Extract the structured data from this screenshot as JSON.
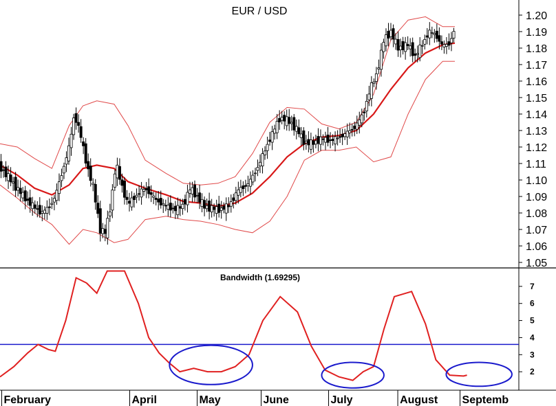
{
  "colors": {
    "band": "#e04848",
    "middle": "#d81818",
    "candle": "#000000",
    "bandwidth_line": "#e02020",
    "threshold": "#1a1acc",
    "squeeze_ellipse": "#1a1acc",
    "grid": "#000000",
    "background": "#ffffff"
  },
  "chart_data": [
    {
      "type": "candlestick",
      "title": "EUR / USD",
      "ylim": [
        1.05,
        1.205
      ],
      "yticks": [
        1.05,
        1.06,
        1.07,
        1.08,
        1.09,
        1.1,
        1.11,
        1.12,
        1.13,
        1.14,
        1.15,
        1.16,
        1.17,
        1.18,
        1.19,
        1.2
      ],
      "ytick_labels": [
        "1.05",
        "1.06",
        "1.07",
        "1.08",
        "1.09",
        "1.10",
        "1.11",
        "1.12",
        "1.13",
        "1.14",
        "1.15",
        "1.16",
        "1.17",
        "1.18",
        "1.19",
        "1.20"
      ],
      "close_path": [
        [
          0,
          1.108
        ],
        [
          6,
          1.1
        ],
        [
          12,
          1.092
        ],
        [
          18,
          1.085
        ],
        [
          24,
          1.08
        ],
        [
          28,
          1.083
        ],
        [
          32,
          1.09
        ],
        [
          36,
          1.105
        ],
        [
          40,
          1.12
        ],
        [
          43,
          1.14
        ],
        [
          46,
          1.13
        ],
        [
          50,
          1.11
        ],
        [
          54,
          1.095
        ],
        [
          58,
          1.07
        ],
        [
          61,
          1.068
        ],
        [
          64,
          1.085
        ],
        [
          67,
          1.11
        ],
        [
          70,
          1.098
        ],
        [
          74,
          1.085
        ],
        [
          78,
          1.09
        ],
        [
          84,
          1.095
        ],
        [
          90,
          1.088
        ],
        [
          96,
          1.084
        ],
        [
          102,
          1.082
        ],
        [
          106,
          1.085
        ],
        [
          110,
          1.095
        ],
        [
          114,
          1.09
        ],
        [
          118,
          1.084
        ],
        [
          122,
          1.083
        ],
        [
          126,
          1.082
        ],
        [
          132,
          1.084
        ],
        [
          138,
          1.094
        ],
        [
          144,
          1.098
        ],
        [
          150,
          1.11
        ],
        [
          156,
          1.125
        ],
        [
          162,
          1.138
        ],
        [
          168,
          1.135
        ],
        [
          172,
          1.13
        ],
        [
          176,
          1.123
        ],
        [
          180,
          1.122
        ],
        [
          186,
          1.125
        ],
        [
          192,
          1.124
        ],
        [
          196,
          1.126
        ],
        [
          200,
          1.128
        ],
        [
          206,
          1.133
        ],
        [
          210,
          1.14
        ],
        [
          214,
          1.155
        ],
        [
          218,
          1.165
        ],
        [
          222,
          1.185
        ],
        [
          226,
          1.19
        ],
        [
          230,
          1.18
        ],
        [
          236,
          1.182
        ],
        [
          240,
          1.175
        ],
        [
          244,
          1.182
        ],
        [
          248,
          1.19
        ],
        [
          252,
          1.188
        ],
        [
          256,
          1.181
        ],
        [
          260,
          1.183
        ],
        [
          263,
          1.192
        ]
      ],
      "middle_band": [
        [
          0,
          1.109
        ],
        [
          10,
          1.103
        ],
        [
          20,
          1.095
        ],
        [
          30,
          1.091
        ],
        [
          40,
          1.097
        ],
        [
          48,
          1.107
        ],
        [
          56,
          1.109
        ],
        [
          66,
          1.107
        ],
        [
          74,
          1.099
        ],
        [
          84,
          1.095
        ],
        [
          96,
          1.091
        ],
        [
          106,
          1.087
        ],
        [
          116,
          1.086
        ],
        [
          126,
          1.084
        ],
        [
          136,
          1.086
        ],
        [
          146,
          1.092
        ],
        [
          156,
          1.102
        ],
        [
          166,
          1.114
        ],
        [
          176,
          1.122
        ],
        [
          186,
          1.126
        ],
        [
          196,
          1.127
        ],
        [
          206,
          1.13
        ],
        [
          216,
          1.14
        ],
        [
          226,
          1.155
        ],
        [
          236,
          1.168
        ],
        [
          246,
          1.177
        ],
        [
          256,
          1.182
        ],
        [
          263,
          1.183
        ]
      ],
      "upper_band": [
        [
          0,
          1.122
        ],
        [
          10,
          1.12
        ],
        [
          20,
          1.113
        ],
        [
          30,
          1.107
        ],
        [
          40,
          1.133
        ],
        [
          48,
          1.145
        ],
        [
          56,
          1.148
        ],
        [
          66,
          1.146
        ],
        [
          74,
          1.133
        ],
        [
          84,
          1.112
        ],
        [
          96,
          1.104
        ],
        [
          106,
          1.098
        ],
        [
          116,
          1.097
        ],
        [
          126,
          1.098
        ],
        [
          136,
          1.102
        ],
        [
          146,
          1.116
        ],
        [
          156,
          1.135
        ],
        [
          166,
          1.144
        ],
        [
          176,
          1.143
        ],
        [
          186,
          1.134
        ],
        [
          196,
          1.131
        ],
        [
          206,
          1.135
        ],
        [
          216,
          1.152
        ],
        [
          226,
          1.185
        ],
        [
          236,
          1.197
        ],
        [
          246,
          1.199
        ],
        [
          256,
          1.193
        ],
        [
          263,
          1.193
        ]
      ],
      "lower_band": [
        [
          0,
          1.097
        ],
        [
          10,
          1.089
        ],
        [
          20,
          1.08
        ],
        [
          30,
          1.073
        ],
        [
          40,
          1.061
        ],
        [
          48,
          1.07
        ],
        [
          56,
          1.068
        ],
        [
          66,
          1.062
        ],
        [
          74,
          1.064
        ],
        [
          84,
          1.076
        ],
        [
          96,
          1.078
        ],
        [
          106,
          1.076
        ],
        [
          116,
          1.075
        ],
        [
          126,
          1.073
        ],
        [
          136,
          1.07
        ],
        [
          146,
          1.068
        ],
        [
          156,
          1.075
        ],
        [
          166,
          1.09
        ],
        [
          176,
          1.112
        ],
        [
          186,
          1.118
        ],
        [
          196,
          1.118
        ],
        [
          206,
          1.12
        ],
        [
          216,
          1.111
        ],
        [
          226,
          1.114
        ],
        [
          236,
          1.14
        ],
        [
          246,
          1.161
        ],
        [
          256,
          1.172
        ],
        [
          263,
          1.172
        ]
      ]
    },
    {
      "type": "line",
      "title": "Bandwidth (1.69295)",
      "ylim": [
        1,
        8
      ],
      "yticks": [
        2,
        3,
        4,
        5,
        6,
        7
      ],
      "ytick_labels": [
        "2",
        "3",
        "4",
        "5",
        "6",
        "7"
      ],
      "threshold": 3.6,
      "series": [
        {
          "values": [
            [
              0,
              1.7
            ],
            [
              8,
              2.3
            ],
            [
              16,
              3.1
            ],
            [
              22,
              3.6
            ],
            [
              28,
              3.3
            ],
            [
              32,
              3.2
            ],
            [
              38,
              5.0
            ],
            [
              44,
              7.5
            ],
            [
              50,
              7.2
            ],
            [
              56,
              6.6
            ],
            [
              62,
              7.9
            ],
            [
              72,
              7.9
            ],
            [
              80,
              6.0
            ],
            [
              86,
              4.0
            ],
            [
              92,
              3.1
            ],
            [
              98,
              2.5
            ],
            [
              104,
              2.0
            ],
            [
              112,
              2.2
            ],
            [
              120,
              2.0
            ],
            [
              128,
              2.0
            ],
            [
              136,
              2.3
            ],
            [
              144,
              3.0
            ],
            [
              152,
              5.0
            ],
            [
              162,
              6.4
            ],
            [
              172,
              5.5
            ],
            [
              180,
              3.5
            ],
            [
              188,
              2.1
            ],
            [
              196,
              1.7
            ],
            [
              204,
              1.5
            ],
            [
              210,
              2.0
            ],
            [
              216,
              2.3
            ],
            [
              222,
              4.5
            ],
            [
              228,
              6.4
            ],
            [
              238,
              6.7
            ],
            [
              246,
              4.8
            ],
            [
              252,
              2.7
            ],
            [
              260,
              1.8
            ],
            [
              268,
              1.75
            ],
            [
              270,
              1.8
            ]
          ]
        }
      ],
      "ellipses": [
        {
          "center": [
            122,
            2.4
          ],
          "rx": 24,
          "ry": 1.15
        },
        {
          "center": [
            204,
            1.8
          ],
          "rx": 18,
          "ry": 0.75
        },
        {
          "center": [
            277,
            1.85
          ],
          "rx": 19,
          "ry": 0.7
        }
      ]
    }
  ],
  "x_axis": {
    "xlim": [
      0,
      300
    ],
    "month_labels": [
      {
        "label": "February",
        "x": 1
      },
      {
        "label": "April",
        "x": 75
      },
      {
        "label": "May",
        "x": 114
      },
      {
        "label": "June",
        "x": 151
      },
      {
        "label": "July",
        "x": 190
      },
      {
        "label": "August",
        "x": 230
      },
      {
        "label": "Septemb",
        "x": 266
      }
    ]
  }
}
